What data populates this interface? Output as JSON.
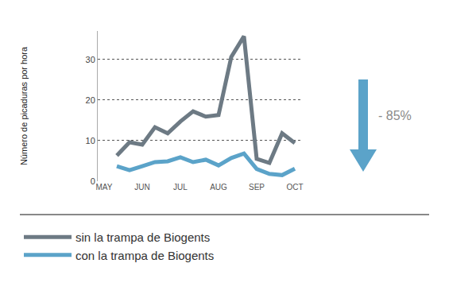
{
  "chart_data": {
    "type": "line",
    "y_label": "Número de picaduras por hora",
    "categories": [
      "MAY",
      null,
      null,
      "JUN",
      null,
      null,
      "JUL",
      null,
      null,
      "AUG",
      null,
      null,
      "SEP",
      null,
      null,
      "OCT"
    ],
    "series": [
      {
        "name": "sin la trampa de Biogents",
        "color": "#6d7a84",
        "values": [
          null,
          6.3,
          9.6,
          9.0,
          13.3,
          11.8,
          14.7,
          17.2,
          15.9,
          16.3,
          30.6,
          35.7,
          5.5,
          4.5,
          11.8,
          9.4
        ]
      },
      {
        "name": "con la trampa de Biogents",
        "color": "#5ba3c9",
        "values": [
          null,
          3.7,
          2.7,
          3.7,
          4.7,
          4.9,
          5.9,
          4.7,
          5.3,
          3.9,
          5.7,
          6.8,
          3.0,
          1.8,
          1.5,
          3.1
        ]
      }
    ],
    "ylim": [
      0,
      37
    ],
    "yticks": [
      0,
      10,
      20,
      30
    ],
    "grid": true,
    "legend": "bottom",
    "annotations": [
      {
        "text": "- 85%"
      }
    ]
  }
}
